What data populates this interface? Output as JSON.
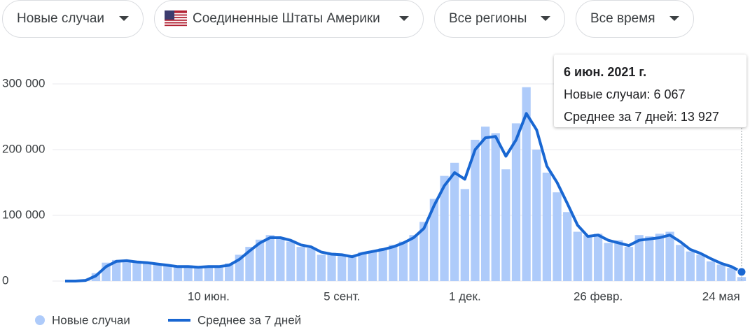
{
  "filters": [
    "Новые случаи",
    "Соединенные Штаты Америки",
    "Все регионы",
    "Все время"
  ],
  "chart_data": {
    "type": "bar-line",
    "categories": [
      null,
      null,
      null,
      null,
      null,
      null,
      null,
      null,
      null,
      null,
      null,
      null,
      null,
      null,
      "10 июн.",
      null,
      null,
      null,
      null,
      null,
      null,
      null,
      null,
      null,
      null,
      null,
      null,
      "5 сент.",
      null,
      null,
      null,
      null,
      null,
      null,
      null,
      null,
      null,
      null,
      null,
      "1 дек.",
      null,
      null,
      null,
      null,
      null,
      null,
      null,
      null,
      null,
      null,
      null,
      null,
      "26 февр.",
      null,
      null,
      null,
      null,
      null,
      null,
      null,
      null,
      null,
      null,
      null,
      "24 мая",
      null,
      null
    ],
    "series": [
      {
        "name": "Новые случаи",
        "color": "#aecbfa",
        "type": "bar",
        "values": [
          0,
          0,
          2000,
          12000,
          28000,
          32000,
          30000,
          31000,
          27000,
          25000,
          23000,
          21000,
          24000,
          20000,
          23000,
          21000,
          27000,
          40000,
          52000,
          63000,
          70000,
          64000,
          60000,
          52000,
          50000,
          40000,
          43000,
          38000,
          36000,
          44000,
          46000,
          50000,
          55000,
          60000,
          70000,
          90000,
          125000,
          160000,
          180000,
          140000,
          215000,
          235000,
          225000,
          170000,
          240000,
          295000,
          200000,
          165000,
          135000,
          105000,
          75000,
          70000,
          72000,
          58000,
          62000,
          52000,
          70000,
          68000,
          72000,
          75000,
          55000,
          45000,
          40000,
          30000,
          25000,
          20000,
          6067
        ]
      },
      {
        "name": "Среднее за 7 дней",
        "color": "#1967d2",
        "type": "line",
        "values": [
          0,
          0,
          1000,
          8000,
          22000,
          30000,
          31000,
          29000,
          28000,
          26000,
          24000,
          22000,
          22000,
          21000,
          22000,
          22000,
          24000,
          33000,
          46000,
          58000,
          66000,
          66000,
          62000,
          55000,
          52000,
          44000,
          41000,
          40000,
          37000,
          42000,
          45000,
          48000,
          52000,
          58000,
          66000,
          80000,
          115000,
          145000,
          165000,
          155000,
          200000,
          218000,
          220000,
          190000,
          215000,
          255000,
          230000,
          175000,
          150000,
          118000,
          85000,
          68000,
          70000,
          62000,
          58000,
          54000,
          62000,
          64000,
          66000,
          70000,
          60000,
          48000,
          42000,
          34000,
          27000,
          22000,
          13927
        ]
      }
    ],
    "ylim": [
      0,
      300000
    ],
    "yticks": [
      0,
      {
        "value": 100000,
        "label": "100 000"
      },
      {
        "value": 200000,
        "label": "200 000"
      },
      {
        "value": 300000,
        "label": "300 000"
      }
    ],
    "grid": true
  },
  "tooltip": {
    "title": "6 июн. 2021 г.",
    "rows": [
      "Новые случаи: 6 067",
      "Среднее за 7 дней: 13 927"
    ]
  }
}
